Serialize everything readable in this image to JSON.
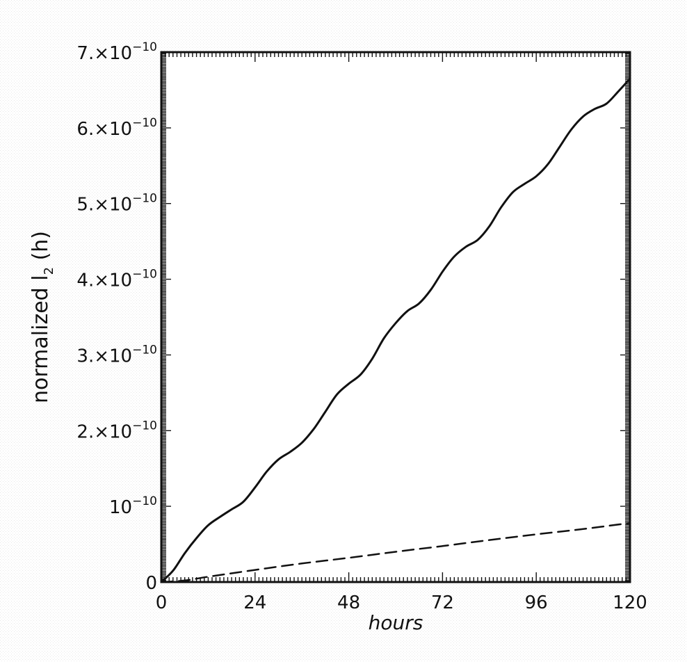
{
  "chart_data": {
    "type": "line",
    "title": "",
    "xlabel": "hours",
    "ylabel": {
      "main": "normalized l",
      "subscript": "2",
      "suffix": " (h)"
    },
    "xlim": [
      0,
      120
    ],
    "ylim": [
      0,
      7e-10
    ],
    "x_ticks": [
      0,
      24,
      48,
      72,
      96,
      120
    ],
    "x_tick_labels": [
      "0",
      "24",
      "48",
      "72",
      "96",
      "120"
    ],
    "y_ticks": [
      0,
      1e-10,
      2e-10,
      3e-10,
      4e-10,
      5e-10,
      6e-10,
      7e-10
    ],
    "y_tick_labels": [
      {
        "base": "0",
        "exp": ""
      },
      {
        "base": "10",
        "exp": "−10"
      },
      {
        "base": "2.×10",
        "exp": "−10"
      },
      {
        "base": "3.×10",
        "exp": "−10"
      },
      {
        "base": "4.×10",
        "exp": "−10"
      },
      {
        "base": "5.×10",
        "exp": "−10"
      },
      {
        "base": "6.×10",
        "exp": "−10"
      },
      {
        "base": "7.×10",
        "exp": "−10"
      }
    ],
    "grid": false,
    "legend": "none",
    "series": [
      {
        "style": "solid",
        "color": "#111111",
        "x": [
          0,
          3,
          6,
          9,
          12,
          15,
          18,
          21,
          24,
          27,
          30,
          33,
          36,
          39,
          42,
          45,
          48,
          51,
          54,
          57,
          60,
          63,
          66,
          69,
          72,
          75,
          78,
          81,
          84,
          87,
          90,
          93,
          96,
          99,
          102,
          105,
          108,
          111,
          114,
          117,
          120
        ],
        "y": [
          0,
          1.5e-11,
          3.8e-11,
          5.8e-11,
          7.5e-11,
          8.6e-11,
          9.6e-11,
          1.06e-10,
          1.25e-10,
          1.46e-10,
          1.62e-10,
          1.72e-10,
          1.84e-10,
          2.02e-10,
          2.25e-10,
          2.48e-10,
          2.62e-10,
          2.74e-10,
          2.95e-10,
          3.22e-10,
          3.42e-10,
          3.58e-10,
          3.68e-10,
          3.86e-10,
          4.1e-10,
          4.3e-10,
          4.43e-10,
          4.52e-10,
          4.7e-10,
          4.95e-10,
          5.15e-10,
          5.26e-10,
          5.36e-10,
          5.52e-10,
          5.75e-10,
          5.98e-10,
          6.15e-10,
          6.25e-10,
          6.32e-10,
          6.48e-10,
          6.65e-10
        ]
      },
      {
        "style": "dashed",
        "color": "#111111",
        "x": [
          0,
          6,
          12,
          24,
          36,
          48,
          60,
          72,
          84,
          96,
          108,
          120
        ],
        "y": [
          0,
          2e-12,
          7e-12,
          1.6e-11,
          2.45e-11,
          3.2e-11,
          4e-11,
          4.75e-11,
          5.55e-11,
          6.3e-11,
          7e-11,
          7.8e-11
        ]
      }
    ]
  }
}
